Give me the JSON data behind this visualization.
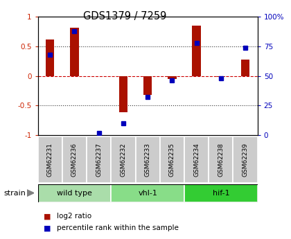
{
  "title": "GDS1379 / 7259",
  "samples": [
    "GSM62231",
    "GSM62236",
    "GSM62237",
    "GSM62232",
    "GSM62233",
    "GSM62235",
    "GSM62234",
    "GSM62238",
    "GSM62239"
  ],
  "log2_ratio": [
    0.62,
    0.82,
    0.0,
    -0.62,
    -0.32,
    -0.05,
    0.85,
    -0.02,
    0.28
  ],
  "percentile_rank": [
    68,
    88,
    2,
    10,
    32,
    46,
    78,
    48,
    74
  ],
  "groups": [
    {
      "label": "wild type",
      "start": 0,
      "end": 3,
      "color": "#aaddaa"
    },
    {
      "label": "vhl-1",
      "start": 3,
      "end": 6,
      "color": "#88dd88"
    },
    {
      "label": "hif-1",
      "start": 6,
      "end": 9,
      "color": "#33cc33"
    }
  ],
  "ylim_left": [
    -1,
    1
  ],
  "ylim_right": [
    0,
    100
  ],
  "yticks_left": [
    -1,
    -0.5,
    0,
    0.5,
    1
  ],
  "yticks_right": [
    0,
    25,
    50,
    75,
    100
  ],
  "ytick_labels_left": [
    "-1",
    "-0.5",
    "0",
    "0.5",
    "1"
  ],
  "ytick_labels_right": [
    "0",
    "25",
    "50",
    "75",
    "100%"
  ],
  "bar_color": "#aa1100",
  "dot_color": "#0000bb",
  "hline_color": "#cc0000",
  "grid_color": "#333333",
  "bg_color": "#ffffff",
  "strain_label": "strain",
  "legend_log2": "log2 ratio",
  "legend_pct": "percentile rank within the sample",
  "bar_width": 0.35
}
